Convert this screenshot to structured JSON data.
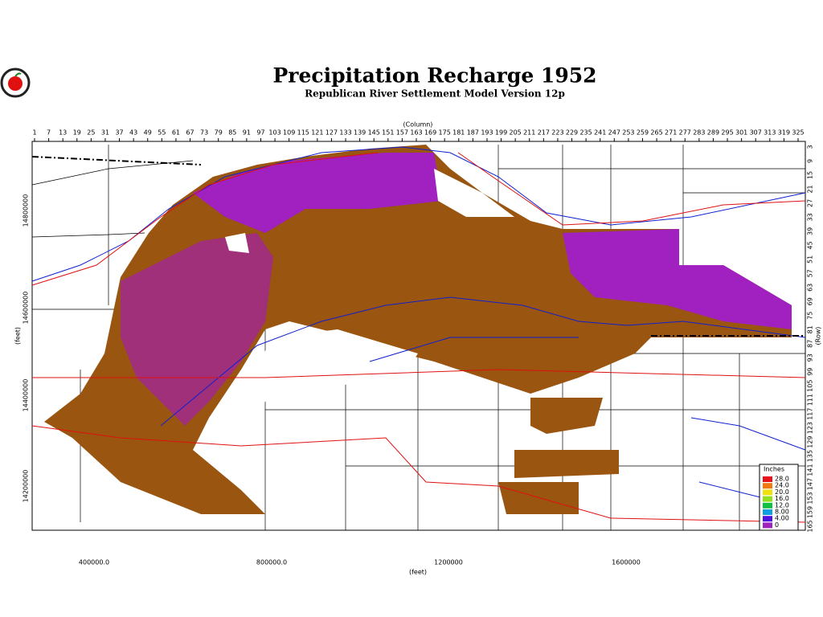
{
  "header": {
    "title": "Precipitation Recharge 1952",
    "subtitle": "Republican River Settlement Model Version 12p"
  },
  "axes": {
    "column_label": "(Column)",
    "row_label": "(Row)",
    "left_label": "(feet)",
    "bottom_label": "(feet)",
    "column_ticks": [
      1,
      7,
      13,
      19,
      25,
      31,
      37,
      43,
      49,
      55,
      61,
      67,
      73,
      79,
      85,
      91,
      97,
      103,
      109,
      115,
      121,
      127,
      133,
      139,
      145,
      151,
      157,
      163,
      169,
      175,
      181,
      187,
      193,
      199,
      205,
      211,
      217,
      223,
      229,
      235,
      241,
      247,
      253,
      259,
      265,
      271,
      277,
      283,
      289,
      295,
      301,
      307,
      313,
      319,
      325
    ],
    "row_ticks": [
      3,
      9,
      15,
      21,
      27,
      33,
      39,
      45,
      51,
      57,
      63,
      69,
      75,
      81,
      87,
      93,
      99,
      105,
      111,
      117,
      123,
      129,
      135,
      141,
      147,
      153,
      159,
      165
    ],
    "left_ticks": [
      "14800000",
      "14600000",
      "14400000",
      "14200000"
    ],
    "bottom_ticks": [
      "400000.0",
      "800000.0",
      "1200000",
      "1600000"
    ]
  },
  "legend": {
    "title": "Inches",
    "items": [
      {
        "label": "28.0",
        "color": "#e8101a"
      },
      {
        "label": "24.0",
        "color": "#f07810"
      },
      {
        "label": "20.0",
        "color": "#f0e010"
      },
      {
        "label": "16.0",
        "color": "#90e020"
      },
      {
        "label": "12.0",
        "color": "#10c040"
      },
      {
        "label": "8.00",
        "color": "#10a0e0"
      },
      {
        "label": "4.00",
        "color": "#5010e0"
      },
      {
        "label": "0",
        "color": "#a020c0"
      }
    ]
  }
}
